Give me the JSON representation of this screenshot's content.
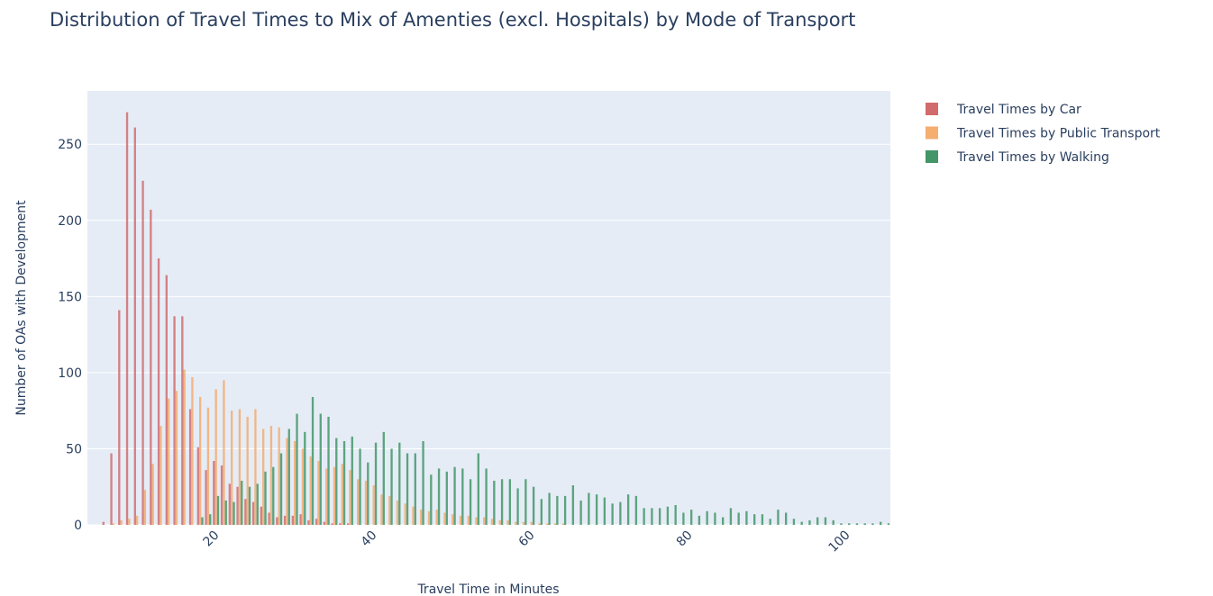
{
  "chart_data": {
    "type": "histogram",
    "title": "Distribution of Travel Times to Mix of Amenties (excl. Hospitals) by Mode of Transport",
    "x_label": "Travel Time in Minutes",
    "y_label": "Number of OAs with Development",
    "bins": [
      5.5,
      6.5,
      7.5,
      8.5,
      9.5,
      10.5,
      11.5,
      12.5,
      13.5,
      14.5,
      15.5,
      16.5,
      17.5,
      18.5,
      19.5,
      20.5,
      21.5,
      22.5,
      23.5,
      24.5,
      25.5,
      26.5,
      27.5,
      28.5,
      29.5,
      30.5,
      31.5,
      32.5,
      33.5,
      34.5,
      35.5,
      36.5,
      37.5,
      38.5,
      39.5,
      40.5,
      41.5,
      42.5,
      43.5,
      44.5,
      45.5,
      46.5,
      47.5,
      48.5,
      49.5,
      50.5,
      51.5,
      52.5,
      53.5,
      54.5,
      55.5,
      56.5,
      57.5,
      58.5,
      59.5,
      60.5,
      61.5,
      62.5,
      63.5,
      64.5,
      65.5,
      66.5,
      67.5,
      68.5,
      69.5,
      70.5,
      71.5,
      72.5,
      73.5,
      74.5,
      75.5,
      76.5,
      77.5,
      78.5,
      79.5,
      80.5,
      81.5,
      82.5,
      83.5,
      84.5,
      85.5,
      86.5,
      87.5,
      88.5,
      89.5,
      90.5,
      91.5,
      92.5,
      93.5,
      94.5,
      95.5,
      96.5,
      97.5,
      98.5,
      99.5,
      100.5,
      101.5,
      102.5,
      103.5,
      104.5,
      105.5,
      106.5
    ],
    "series": [
      {
        "name": "Travel Times by Car",
        "color": "#cd5c5c",
        "values": [
          2,
          47,
          141,
          271,
          261,
          226,
          207,
          175,
          164,
          137,
          137,
          76,
          51,
          36,
          42,
          39,
          27,
          25,
          17,
          15,
          12,
          8,
          5,
          6,
          6,
          7,
          3,
          4,
          2,
          1,
          1,
          1,
          0,
          0,
          0,
          0,
          0,
          0,
          0,
          0,
          0,
          0,
          0,
          0,
          0,
          0,
          0,
          0,
          0,
          0,
          0,
          0,
          0,
          0,
          0,
          0,
          0,
          0,
          0,
          0,
          0,
          0,
          0,
          0,
          0,
          0,
          0,
          0,
          0,
          0,
          0,
          0,
          0,
          0,
          0,
          0,
          0,
          0,
          0,
          0,
          0,
          0,
          0,
          0,
          0,
          0,
          0,
          0,
          0,
          0,
          0,
          0,
          0,
          0,
          0,
          0,
          0,
          0,
          0,
          0,
          0
        ]
      },
      {
        "name": "Travel Times by Public Transport",
        "color": "#f4a460",
        "values": [
          0,
          1,
          3,
          4,
          6,
          23,
          40,
          65,
          83,
          88,
          102,
          97,
          84,
          77,
          89,
          95,
          75,
          76,
          71,
          76,
          63,
          65,
          64,
          57,
          55,
          50,
          45,
          42,
          37,
          38,
          40,
          36,
          30,
          29,
          26,
          20,
          19,
          16,
          14,
          12,
          10,
          9,
          10,
          8,
          7,
          6,
          6,
          5,
          5,
          4,
          3,
          3,
          2,
          2,
          2,
          1,
          1,
          1,
          1,
          0,
          0,
          0,
          0,
          0,
          0,
          0,
          0,
          0,
          0,
          0,
          0,
          0,
          0,
          0,
          0,
          0,
          0,
          0,
          0,
          0,
          0,
          0,
          0,
          0,
          0,
          0,
          0,
          0,
          0,
          0,
          0,
          0,
          0,
          0,
          0,
          0,
          0,
          0,
          0,
          0,
          0
        ]
      },
      {
        "name": "Travel Times by Walking",
        "color": "#2e8b57",
        "values": [
          0,
          0,
          0,
          0,
          0,
          0,
          0,
          0,
          0,
          0,
          0,
          0,
          5,
          7,
          19,
          16,
          15,
          29,
          25,
          27,
          35,
          38,
          47,
          63,
          73,
          61,
          84,
          73,
          71,
          57,
          55,
          58,
          50,
          41,
          54,
          61,
          50,
          54,
          47,
          47,
          55,
          33,
          37,
          35,
          38,
          37,
          30,
          47,
          37,
          29,
          30,
          30,
          24,
          30,
          25,
          17,
          21,
          19,
          19,
          26,
          16,
          21,
          20,
          18,
          14,
          15,
          20,
          19,
          11,
          11,
          11,
          12,
          13,
          8,
          10,
          6,
          9,
          8,
          5,
          11,
          8,
          9,
          7,
          7,
          4,
          10,
          8,
          4,
          2,
          3,
          5,
          5,
          3,
          1,
          1,
          1,
          1,
          1,
          2,
          1,
          1
        ]
      }
    ],
    "xlim": [
      3.7,
      105.5
    ],
    "ylim": [
      0,
      285
    ],
    "xticks": [
      20,
      40,
      60,
      80,
      100
    ],
    "yticks": [
      0,
      50,
      100,
      150,
      200,
      250
    ],
    "grid": true,
    "legend": "top-right"
  }
}
